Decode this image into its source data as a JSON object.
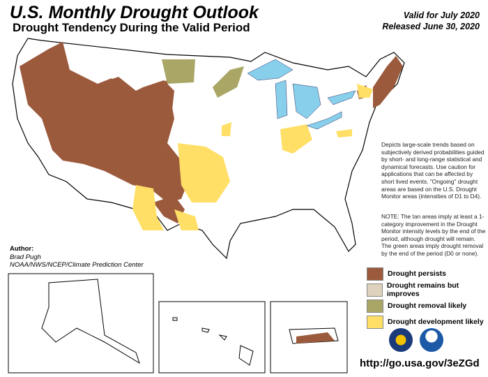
{
  "header": {
    "title": "U.S. Monthly Drought Outlook",
    "subtitle": "Drought Tendency During the Valid Period",
    "valid": "Valid for July 2020",
    "released": "Released June 30, 2020"
  },
  "description": "Depicts large-scale trends based on subjectively derived probabilities guided by short- and long-range statistical and dynamical forecasts. Use caution for applications that can be affected by short lived events. \"Ongoing\" drought areas are based on the U.S. Drought Monitor areas (intensities of D1 to D4).",
  "note": "NOTE: The tan areas imply at least a 1-category improvement in the Drought Monitor intensity levels by the end of the period, although drought will remain. The green areas imply drought removal by the end of the period (D0 or none).",
  "author": {
    "label": "Author:",
    "name": "Brad Pugh",
    "org": "NOAA/NWS/NCEP/Climate Prediction Center"
  },
  "legend": [
    {
      "label": "Drought persists",
      "color": "#9c5a3c"
    },
    {
      "label": "Drought remains but improves",
      "color": "#ded2bc"
    },
    {
      "label": "Drought removal likely",
      "color": "#aaa665"
    },
    {
      "label": "Drought development likely",
      "color": "#ffdf66"
    }
  ],
  "colors": {
    "water": "#87cfeb"
  },
  "url": "http://go.usa.gov/3eZGd",
  "logos": [
    "noaa-nws-seal",
    "noaa-logo"
  ]
}
